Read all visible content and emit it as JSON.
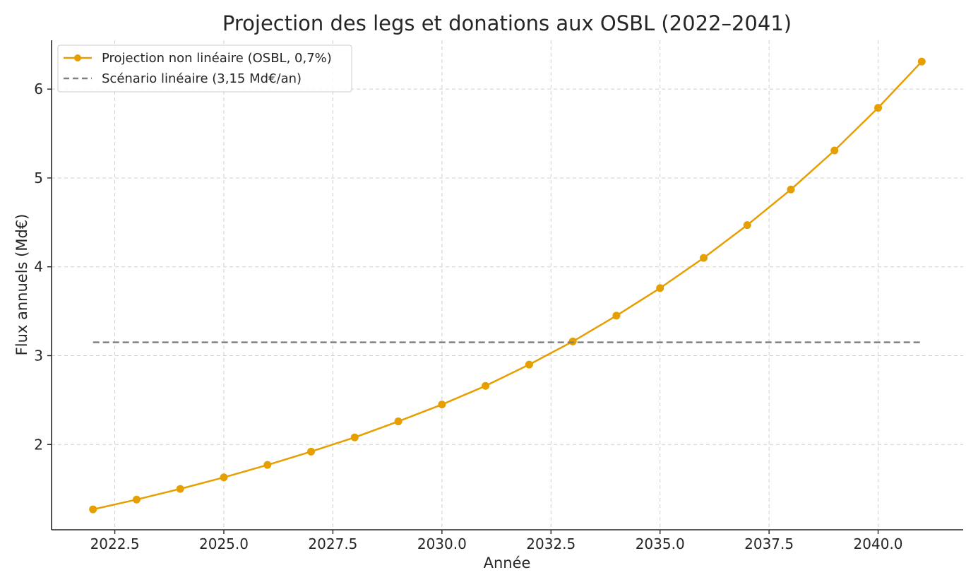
{
  "chart_data": {
    "type": "line",
    "title": "Projection des legs et donations aux OSBL (2022–2041)",
    "xlabel": "Année",
    "ylabel": "Flux annuels (Md€)",
    "xlim": [
      2021.05,
      2041.95
    ],
    "ylim": [
      1.04,
      6.55
    ],
    "xticks": [
      2022.5,
      2025.0,
      2027.5,
      2030.0,
      2032.5,
      2035.0,
      2037.5,
      2040.0
    ],
    "xtick_labels": [
      "2022.5",
      "2025.0",
      "2027.5",
      "2030.0",
      "2032.5",
      "2035.0",
      "2037.5",
      "2040.0"
    ],
    "yticks": [
      2,
      3,
      4,
      5,
      6
    ],
    "ytick_labels": [
      "2",
      "3",
      "4",
      "5",
      "6"
    ],
    "grid": true,
    "legend_position": "top-left",
    "series": [
      {
        "name": "Projection non linéaire (OSBL, 0,7%)",
        "color": "#e69f00",
        "style": "solid-with-markers",
        "x": [
          2022,
          2023,
          2024,
          2025,
          2026,
          2027,
          2028,
          2029,
          2030,
          2031,
          2032,
          2033,
          2034,
          2035,
          2036,
          2037,
          2038,
          2039,
          2040,
          2041
        ],
        "y": [
          1.27,
          1.38,
          1.5,
          1.63,
          1.77,
          1.92,
          2.08,
          2.26,
          2.45,
          2.66,
          2.9,
          3.16,
          3.45,
          3.76,
          4.1,
          4.47,
          4.87,
          5.31,
          5.79,
          6.31
        ]
      },
      {
        "name": "Scénario linéaire (3,15 Md€/an)",
        "color": "#808080",
        "style": "dashed",
        "x": [
          2022,
          2041
        ],
        "y": [
          3.15,
          3.15
        ]
      }
    ]
  }
}
